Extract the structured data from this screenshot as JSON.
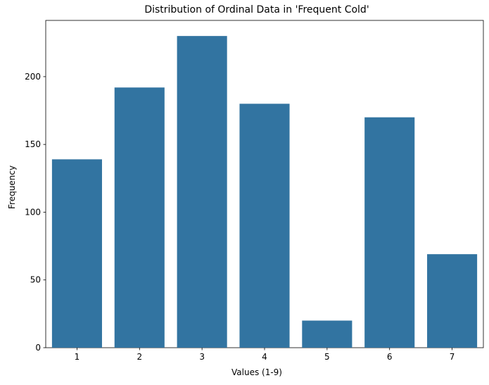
{
  "chart_data": {
    "type": "bar",
    "title": "Distribution of Ordinal Data in 'Frequent Cold'",
    "xlabel": "Values (1-9)",
    "ylabel": "Frequency",
    "categories": [
      "1",
      "2",
      "3",
      "4",
      "5",
      "6",
      "7"
    ],
    "values": [
      139,
      192,
      230,
      180,
      20,
      170,
      69
    ],
    "ylim": [
      0,
      241.5
    ],
    "yticks": [
      0,
      50,
      100,
      150,
      200
    ],
    "grid": false,
    "bar_color": "#3274a1"
  }
}
